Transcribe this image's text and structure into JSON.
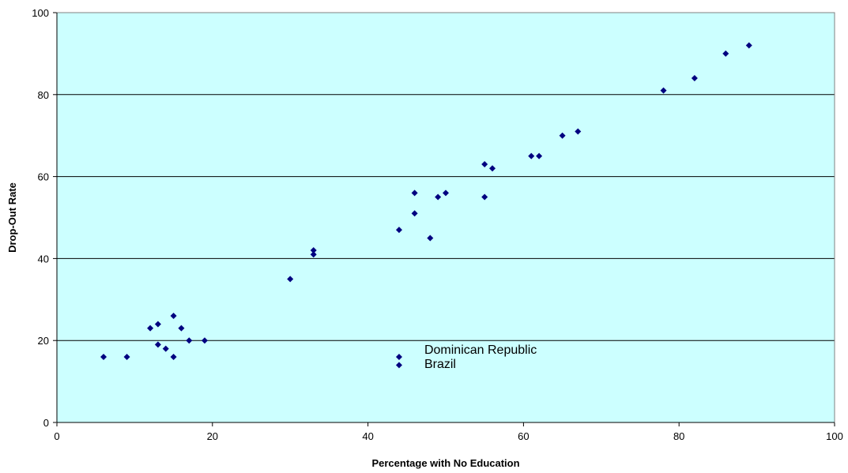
{
  "chart_data": {
    "type": "scatter",
    "title": "",
    "xlabel": "Percentage with No Education",
    "ylabel": "Drop-Out Rate",
    "xlim": [
      0,
      100
    ],
    "ylim": [
      0,
      100
    ],
    "x_ticks": [
      "0",
      "20",
      "40",
      "60",
      "80",
      "100"
    ],
    "y_ticks": [
      "0",
      "20",
      "40",
      "60",
      "80",
      "100"
    ],
    "grid": "horizontal",
    "legend": "none",
    "colors": {
      "plot_background": "#ccffff",
      "marker": "#000080",
      "gridline": "#000000"
    },
    "series": [
      {
        "points": [
          {
            "x": 6,
            "y": 16
          },
          {
            "x": 9,
            "y": 16
          },
          {
            "x": 12,
            "y": 23
          },
          {
            "x": 13,
            "y": 24
          },
          {
            "x": 13,
            "y": 19
          },
          {
            "x": 14,
            "y": 18
          },
          {
            "x": 15,
            "y": 26
          },
          {
            "x": 15,
            "y": 16
          },
          {
            "x": 16,
            "y": 23
          },
          {
            "x": 17,
            "y": 20
          },
          {
            "x": 19,
            "y": 20
          },
          {
            "x": 30,
            "y": 35
          },
          {
            "x": 33,
            "y": 42
          },
          {
            "x": 33,
            "y": 41
          },
          {
            "x": 44,
            "y": 47
          },
          {
            "x": 46,
            "y": 56
          },
          {
            "x": 46,
            "y": 51
          },
          {
            "x": 48,
            "y": 45
          },
          {
            "x": 49,
            "y": 55
          },
          {
            "x": 50,
            "y": 56
          },
          {
            "x": 55,
            "y": 63
          },
          {
            "x": 55,
            "y": 55
          },
          {
            "x": 56,
            "y": 62
          },
          {
            "x": 61,
            "y": 65
          },
          {
            "x": 62,
            "y": 65
          },
          {
            "x": 65,
            "y": 70
          },
          {
            "x": 67,
            "y": 71
          },
          {
            "x": 78,
            "y": 81
          },
          {
            "x": 82,
            "y": 84
          },
          {
            "x": 86,
            "y": 90
          },
          {
            "x": 89,
            "y": 92
          }
        ]
      }
    ],
    "annotations": [
      {
        "text": "Dominican Republic",
        "x": 44,
        "y": 16
      },
      {
        "text": "Brazil",
        "x": 44,
        "y": 14
      }
    ]
  }
}
